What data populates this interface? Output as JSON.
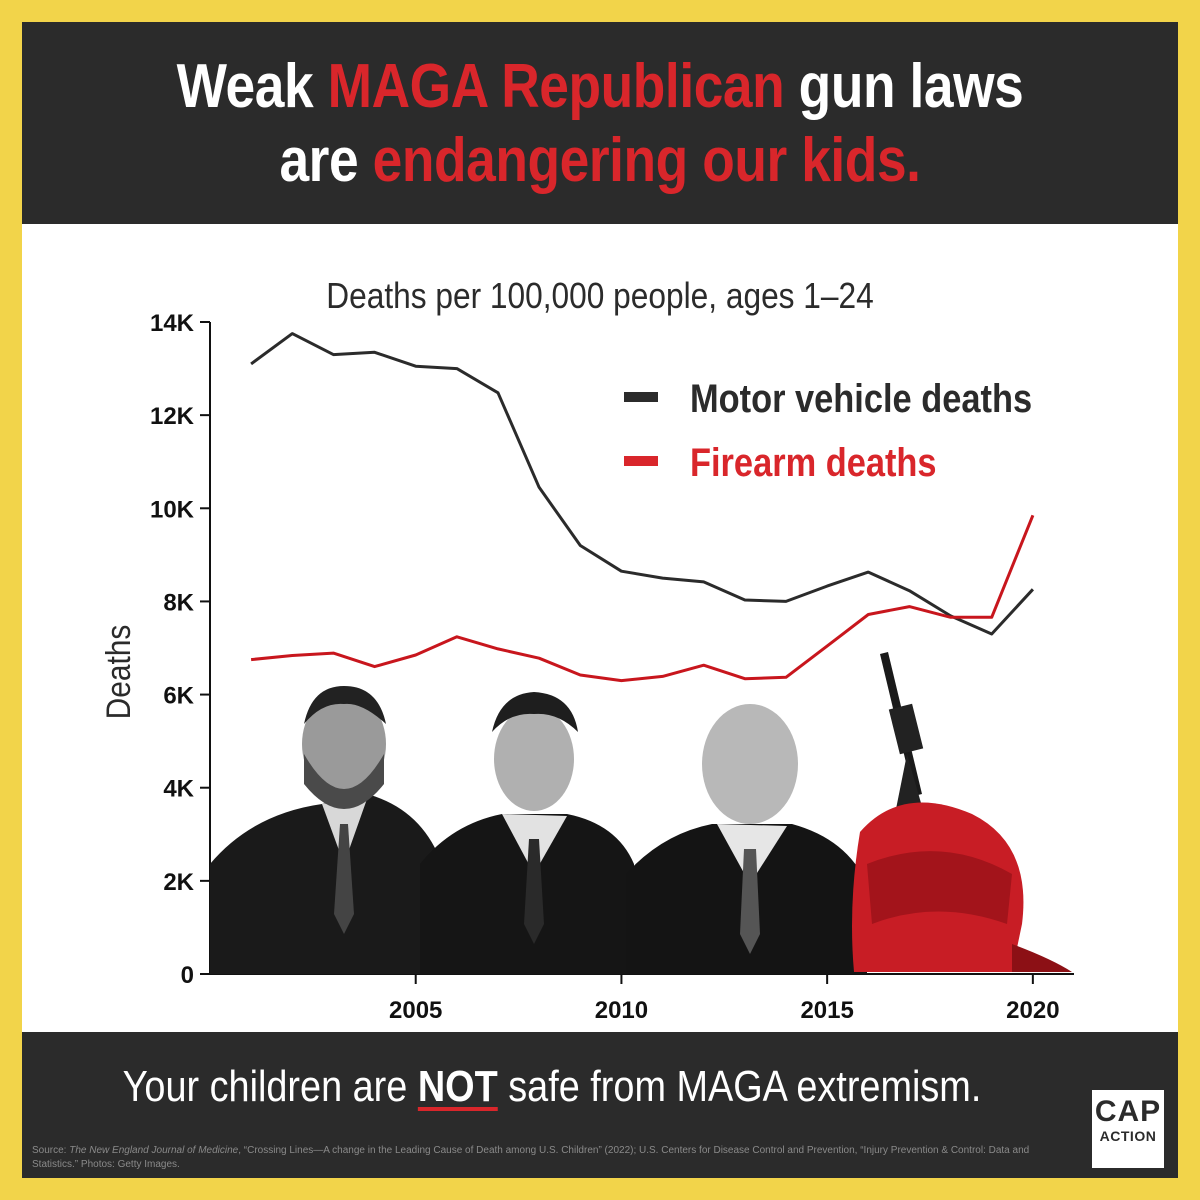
{
  "headline": {
    "line1_part1": "Weak ",
    "line1_highlight": "MAGA Republican",
    "line1_part2": " gun laws",
    "line2_part1": "are ",
    "line2_highlight": "endangering our kids."
  },
  "colors": {
    "frame": "#f2d44a",
    "dark_band": "#2b2b2b",
    "accent_red": "#d9262b",
    "motor_line": "#2b2b2b",
    "firearm_line": "#c8161d"
  },
  "photos": {
    "description_icons": [
      "politician-photo",
      "politician-photo",
      "politician-photo",
      "rifle-in-backpack-photo"
    ]
  },
  "footer": {
    "tagline_part1": "Your children are ",
    "tagline_emphasis": "NOT",
    "tagline_part2": " safe from MAGA extremism.",
    "source_prefix": "Source: ",
    "source_journal": "The New England Journal of Medicine",
    "source_rest": ", “Crossing Lines—A change in the Leading Cause of Death among U.S. Children” (2022); U.S. Centers for Disease Control and Prevention, “Injury Prevention & Control: Data and Statistics.” Photos: Getty Images.",
    "logo_top": "CAP",
    "logo_bottom": "ACTION"
  },
  "chart_data": {
    "type": "line",
    "title": "Deaths per 100,000 people, ages 1–24",
    "ylabel": "Deaths",
    "xlabel": "",
    "xlim": [
      2000,
      2021
    ],
    "ylim": [
      0,
      14000
    ],
    "yticks": [
      0,
      2000,
      4000,
      6000,
      8000,
      10000,
      12000,
      14000
    ],
    "ytick_labels": [
      "0",
      "2K",
      "4K",
      "6K",
      "8K",
      "10K",
      "12K",
      "14K"
    ],
    "xticks": [
      2005,
      2010,
      2015,
      2020
    ],
    "xtick_labels": [
      "2005",
      "2010",
      "2015",
      "2020"
    ],
    "grid": false,
    "legend_position": "top-right",
    "x": [
      2001,
      2002,
      2003,
      2004,
      2005,
      2006,
      2007,
      2008,
      2009,
      2010,
      2011,
      2012,
      2013,
      2014,
      2015,
      2016,
      2017,
      2018,
      2019,
      2020
    ],
    "series": [
      {
        "name": "Motor vehicle deaths",
        "color": "#2b2b2b",
        "values": [
          13100,
          13750,
          13300,
          13350,
          13050,
          13000,
          12480,
          10450,
          9200,
          8650,
          8500,
          8420,
          8030,
          8000,
          8330,
          8630,
          8230,
          7690,
          7300,
          8260
        ]
      },
      {
        "name": "Firearm deaths",
        "color": "#c8161d",
        "values": [
          6750,
          6840,
          6890,
          6600,
          6850,
          7240,
          6980,
          6780,
          6420,
          6300,
          6390,
          6630,
          6340,
          6370,
          7040,
          7720,
          7890,
          7660,
          7660,
          9850
        ]
      }
    ]
  }
}
